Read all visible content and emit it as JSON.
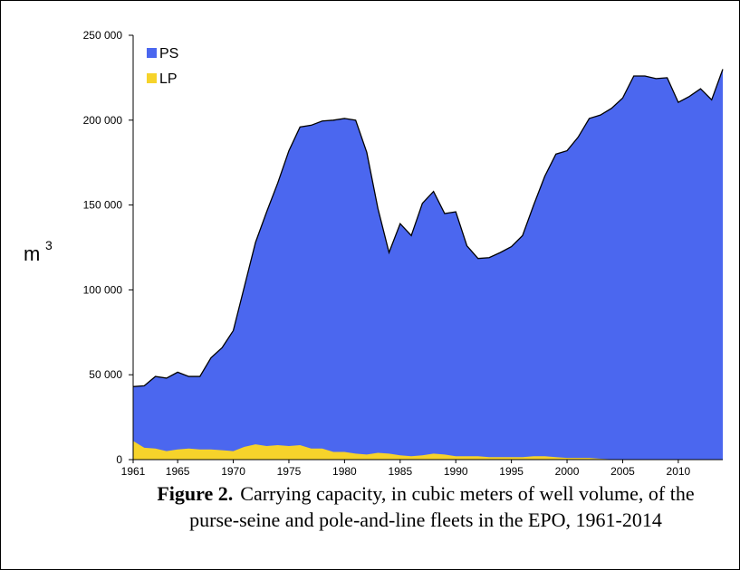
{
  "chart_data": {
    "type": "area",
    "caption_label": "Figure 2.",
    "caption_line1": "Carrying capacity, in cubic meters of well volume, of the",
    "caption_line2": "purse-seine and pole-and-line fleets in the EPO, 1961-2014",
    "y_label": "m",
    "y_label_sup": "3",
    "x": [
      1961,
      1962,
      1963,
      1964,
      1965,
      1966,
      1967,
      1968,
      1969,
      1970,
      1971,
      1972,
      1973,
      1974,
      1975,
      1976,
      1977,
      1978,
      1979,
      1980,
      1981,
      1982,
      1983,
      1984,
      1985,
      1986,
      1987,
      1988,
      1989,
      1990,
      1991,
      1992,
      1993,
      1994,
      1995,
      1996,
      1997,
      1998,
      1999,
      2000,
      2001,
      2002,
      2003,
      2004,
      2005,
      2006,
      2007,
      2008,
      2009,
      2010,
      2011,
      2012,
      2013,
      2014
    ],
    "series": [
      {
        "name": "PS",
        "color": "#4b67ef",
        "values": [
          43000,
          43500,
          49000,
          48000,
          51500,
          49000,
          49000,
          60000,
          66000,
          76000,
          102000,
          128000,
          146000,
          163000,
          182000,
          196000,
          197000,
          199500,
          200000,
          201000,
          200000,
          181000,
          148000,
          122000,
          139000,
          132000,
          151000,
          158000,
          145000,
          146000,
          126000,
          118500,
          119000,
          122000,
          125500,
          132000,
          150000,
          167000,
          180000,
          182000,
          190000,
          201000,
          203000,
          207000,
          213000,
          226000,
          226000,
          224500,
          225000,
          210500,
          214000,
          218500,
          212000,
          230000
        ]
      },
      {
        "name": "LP",
        "color": "#f6d32b",
        "values": [
          11000,
          7000,
          6500,
          5000,
          6000,
          6500,
          6000,
          6000,
          5500,
          5000,
          7500,
          9000,
          8000,
          8500,
          8000,
          8500,
          6500,
          6500,
          4500,
          4500,
          3500,
          3000,
          4000,
          3500,
          2500,
          2000,
          2500,
          3500,
          3000,
          2000,
          2000,
          2000,
          1500,
          1500,
          1500,
          1500,
          2000,
          2000,
          1500,
          1000,
          1000,
          1000,
          500,
          200,
          300,
          300,
          300,
          200,
          200,
          200,
          200,
          300,
          200,
          200
        ]
      }
    ],
    "xlim": [
      1961,
      2014
    ],
    "xticks": [
      1961,
      1965,
      1970,
      1975,
      1980,
      1985,
      1990,
      1995,
      2000,
      2005,
      2010
    ],
    "ylim": [
      0,
      250000
    ],
    "yticks": [
      0,
      {
        "value": 50000,
        "label": "50 000"
      },
      {
        "value": 100000,
        "label": "100 000"
      },
      {
        "value": 150000,
        "label": "150 000"
      },
      {
        "value": 200000,
        "label": "200 000"
      },
      {
        "value": 250000,
        "label": "250 000"
      }
    ],
    "legend": "top-left",
    "outline_series": "PS"
  }
}
